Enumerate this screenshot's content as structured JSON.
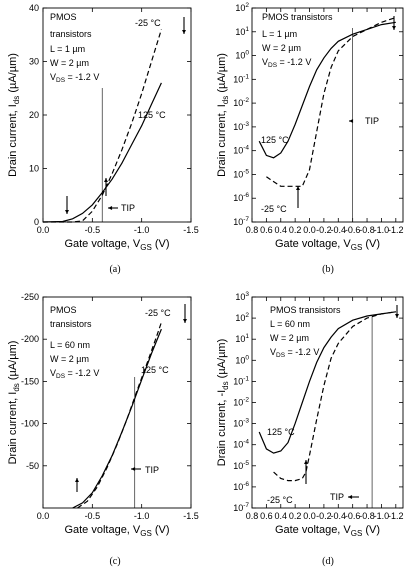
{
  "chart_data": [
    {
      "type": "line",
      "panel": "(a)",
      "title": "",
      "annotations": [
        "PMOS",
        "transistors",
        "L = 1 µm",
        "W = 2 µm",
        "VDS = -1.2 V",
        "-25 °C",
        "125 °C",
        "TIP"
      ],
      "xlabel": "Gate voltage, V",
      "xlabel_sub": "GS",
      "xlabel_unit": "(V)",
      "ylabel": "Drain current, I",
      "ylabel_sub": "ds",
      "ylabel_unit": "(µA/µm)",
      "xlim": [
        0.0,
        -1.5
      ],
      "ylim": [
        0,
        40
      ],
      "yscale": "linear",
      "xticks": [
        "0.0",
        "-0.5",
        "-1.0",
        "-1.5"
      ],
      "yticks": [
        "0",
        "10",
        "20",
        "30",
        "40"
      ],
      "tip_x": -0.6,
      "series": [
        {
          "name": "-25 °C",
          "style": "dashed",
          "x": [
            0.0,
            -0.3,
            -0.4,
            -0.5,
            -0.6,
            -0.7,
            -0.8,
            -0.9,
            -1.0,
            -1.1,
            -1.2
          ],
          "y": [
            0,
            0,
            0.2,
            2.0,
            5.0,
            9.0,
            13.5,
            18.5,
            24.0,
            30.0,
            36.0
          ]
        },
        {
          "name": "125 °C",
          "style": "solid",
          "x": [
            0.0,
            -0.2,
            -0.3,
            -0.4,
            -0.5,
            -0.6,
            -0.7,
            -0.8,
            -0.9,
            -1.0,
            -1.1,
            -1.2
          ],
          "y": [
            0,
            0.1,
            0.6,
            1.6,
            3.2,
            5.5,
            8.0,
            11.0,
            14.5,
            18.0,
            22.0,
            26.0
          ]
        }
      ]
    },
    {
      "type": "line",
      "panel": "(b)",
      "title": "",
      "annotations": [
        "PMOS transistors",
        "L = 1 µm",
        "W = 2 µm",
        "VDS = -1.2 V",
        "125 °C",
        "-25 °C",
        "TIP"
      ],
      "xlabel": "Gate voltage, V",
      "xlabel_sub": "GS",
      "xlabel_unit": "(V)",
      "ylabel": "Drain current, I",
      "ylabel_sub": "ds",
      "ylabel_unit": "(µA/µm)",
      "xlim": [
        0.8,
        -1.3
      ],
      "ylim": [
        -7,
        2
      ],
      "yscale": "log",
      "xticks": [
        "0.8",
        "0.6",
        "0.4",
        "0.2",
        "0.0",
        "-0.2",
        "-0.4",
        "-0.6",
        "-0.8",
        "-1.0",
        "-1.2"
      ],
      "yticks": [
        "10^-7",
        "10^-6",
        "10^-5",
        "10^-4",
        "10^-3",
        "10^-2",
        "10^-1",
        "10^0",
        "10^1",
        "10^2"
      ],
      "tip_x": -0.6,
      "series": [
        {
          "name": "125 °C",
          "style": "solid",
          "x": [
            0.7,
            0.6,
            0.5,
            0.4,
            0.3,
            0.2,
            0.1,
            0.0,
            -0.1,
            -0.2,
            -0.3,
            -0.4,
            -0.6,
            -0.8,
            -1.0,
            -1.2
          ],
          "y_log10": [
            -3.6,
            -4.2,
            -4.3,
            -4.1,
            -3.6,
            -2.9,
            -2.1,
            -1.3,
            -0.6,
            -0.1,
            0.3,
            0.6,
            0.9,
            1.1,
            1.3,
            1.4
          ]
        },
        {
          "name": "-25 °C",
          "style": "dashed",
          "x": [
            0.6,
            0.5,
            0.4,
            0.3,
            0.2,
            0.1,
            0.0,
            -0.1,
            -0.2,
            -0.3,
            -0.4,
            -0.6,
            -0.8,
            -1.0,
            -1.2
          ],
          "y_log10": [
            -5.1,
            -5.3,
            -5.5,
            -5.5,
            -5.5,
            -5.5,
            -4.8,
            -3.2,
            -1.6,
            -0.5,
            0.2,
            0.8,
            1.1,
            1.4,
            1.6
          ]
        }
      ]
    },
    {
      "type": "line",
      "panel": "(c)",
      "title": "",
      "annotations": [
        "PMOS",
        "transistors",
        "L = 60 nm",
        "W = 2 µm",
        "VDS = -1.2 V",
        "-25 °C",
        "125 °C",
        "TIP"
      ],
      "xlabel": "Gate voltage, V",
      "xlabel_sub": "GS",
      "xlabel_unit": "(V)",
      "ylabel": "Drain current, I",
      "ylabel_sub": "ds",
      "ylabel_unit": "(µA/µm)",
      "xlim": [
        0.0,
        -1.5
      ],
      "ylim": [
        0,
        -250
      ],
      "yscale": "linear",
      "xticks": [
        "0.0",
        "-0.5",
        "-1.0",
        "-1.5"
      ],
      "yticks": [
        "-50",
        "-100",
        "-150",
        "-200",
        "-250"
      ],
      "tip_x": -0.93,
      "series": [
        {
          "name": "-25 °C",
          "style": "dashed",
          "x": [
            -0.35,
            -0.45,
            -0.55,
            -0.65,
            -0.75,
            -0.85,
            -0.95,
            -1.05,
            -1.15,
            -1.2
          ],
          "y": [
            0,
            -8,
            -25,
            -48,
            -75,
            -105,
            -138,
            -170,
            -203,
            -220
          ]
        },
        {
          "name": "125 °C",
          "style": "solid",
          "x": [
            -0.3,
            -0.4,
            -0.5,
            -0.6,
            -0.7,
            -0.8,
            -0.9,
            -1.0,
            -1.1,
            -1.2
          ],
          "y": [
            0,
            -6,
            -18,
            -38,
            -62,
            -90,
            -120,
            -152,
            -183,
            -212
          ]
        }
      ]
    },
    {
      "type": "line",
      "panel": "(d)",
      "title": "",
      "annotations": [
        "PMOS transistors",
        "L = 60 nm",
        "W = 2 µm",
        "VDS = -1.2 V",
        "125 °C",
        "-25 °C",
        "TIP"
      ],
      "xlabel": "Gate voltage, V",
      "xlabel_sub": "GS",
      "xlabel_unit": "(V)",
      "ylabel": "Drain current, -I",
      "ylabel_sub": "ds",
      "ylabel_unit": "(µA/µm)",
      "xlim": [
        0.8,
        -1.3
      ],
      "ylim": [
        -7,
        3
      ],
      "yscale": "log",
      "xticks": [
        "0.8",
        "0.6",
        "0.4",
        "0.2",
        "0.0",
        "-0.2",
        "-0.4",
        "-0.6",
        "-0.8",
        "-1.0",
        "-1.2"
      ],
      "yticks": [
        "10^-7",
        "10^-6",
        "10^-5",
        "10^-4",
        "10^-3",
        "10^-2",
        "10^-1",
        "10^0",
        "10^1",
        "10^2",
        "10^3"
      ],
      "tip_x": -0.87,
      "series": [
        {
          "name": "125 °C",
          "style": "solid",
          "x": [
            0.7,
            0.6,
            0.5,
            0.4,
            0.3,
            0.2,
            0.1,
            0.0,
            -0.1,
            -0.2,
            -0.3,
            -0.4,
            -0.6,
            -0.8,
            -1.0,
            -1.2
          ],
          "y_log10": [
            -3.4,
            -4.2,
            -4.4,
            -4.3,
            -3.9,
            -3.0,
            -2.0,
            -1.0,
            -0.1,
            0.6,
            1.1,
            1.5,
            1.9,
            2.1,
            2.2,
            2.3
          ]
        },
        {
          "name": "-25 °C",
          "style": "dashed",
          "x": [
            0.5,
            0.4,
            0.3,
            0.2,
            0.1,
            0.05,
            0.0,
            -0.1,
            -0.2,
            -0.3,
            -0.4,
            -0.6,
            -0.8,
            -1.0,
            -1.2
          ],
          "y_log10": [
            -5.3,
            -5.6,
            -5.7,
            -5.7,
            -5.6,
            -5.3,
            -4.5,
            -2.8,
            -1.2,
            0.1,
            0.8,
            1.6,
            2.0,
            2.2,
            2.3
          ]
        }
      ]
    }
  ]
}
